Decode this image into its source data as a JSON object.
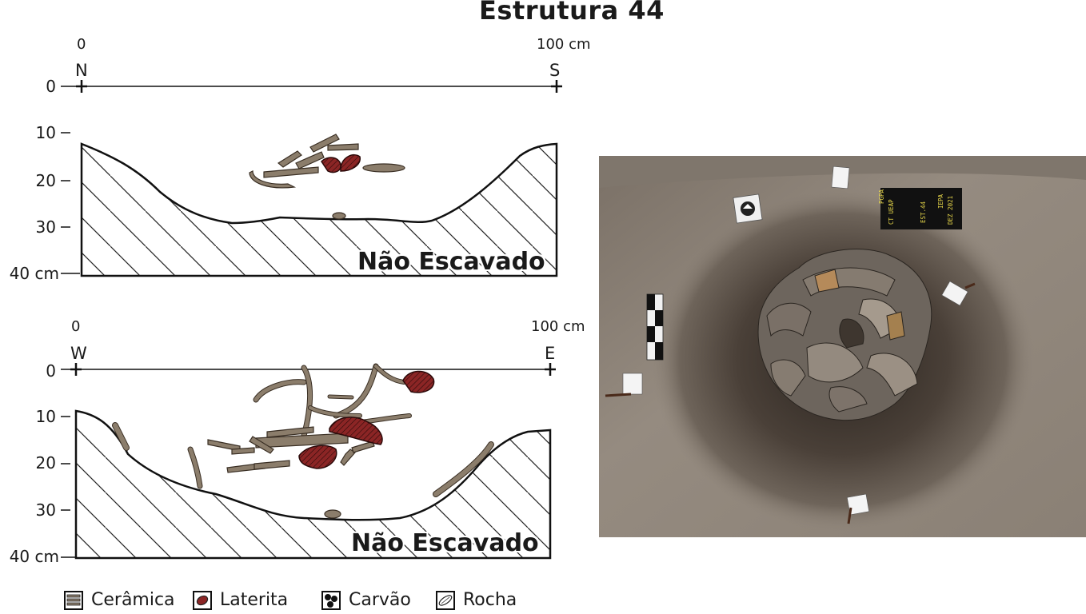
{
  "title": "Estrutura 44",
  "profile_top": {
    "scale_start": "0",
    "scale_end": "100 cm",
    "dir_left": "N",
    "dir_right": "S",
    "ticks": [
      "0",
      "10",
      "20",
      "30",
      "40 cm"
    ],
    "label": "Não Escavado"
  },
  "profile_bottom": {
    "scale_start": "0",
    "scale_end": "100 cm",
    "dir_left": "W",
    "dir_right": "E",
    "ticks": [
      "0",
      "10",
      "20",
      "30",
      "40 cm"
    ],
    "label": "Não Escavado"
  },
  "legend": [
    {
      "label": "Cerâmica",
      "icon": "ceramic-swatch-icon"
    },
    {
      "label": "Laterita",
      "icon": "laterite-swatch-icon"
    },
    {
      "label": "Carvão",
      "icon": "charcoal-swatch-icon"
    },
    {
      "label": "Rocha",
      "icon": "rock-swatch-icon"
    }
  ],
  "photo": {
    "board_lines": [
      "PGPA",
      "CT UEAP",
      "EST.44",
      "IEPA",
      "DEZ 2021"
    ]
  },
  "colors": {
    "ceramic": "#8b7d6b",
    "laterite": "#8b2525",
    "soil": "#8d8378",
    "pit": "#3a322b"
  }
}
